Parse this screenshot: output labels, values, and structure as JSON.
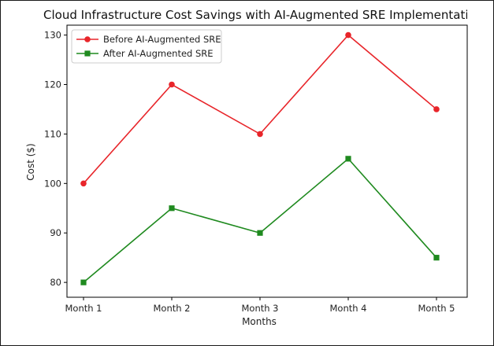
{
  "chart_data": {
    "type": "line",
    "title": "Cloud Infrastructure Cost Savings with AI-Augmented SRE Implementation",
    "xlabel": "Months",
    "ylabel": "Cost ($)",
    "categories": [
      "Month 1",
      "Month 2",
      "Month 3",
      "Month 4",
      "Month 5"
    ],
    "ylim": [
      77,
      132
    ],
    "yticks": [
      80,
      90,
      100,
      110,
      120,
      130
    ],
    "grid": false,
    "legend_position": "top-left",
    "series": [
      {
        "name": "Before AI-Augmented SRE",
        "values": [
          100,
          120,
          110,
          130,
          115
        ],
        "color": "#e8252a",
        "marker": "circle"
      },
      {
        "name": "After AI-Augmented SRE",
        "values": [
          80,
          95,
          90,
          105,
          85
        ],
        "color": "#1f8a1f",
        "marker": "square"
      }
    ]
  }
}
